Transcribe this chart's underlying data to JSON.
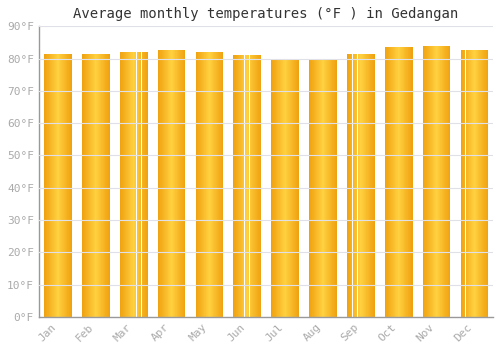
{
  "title": "Average monthly temperatures (°F ) in Gedangan",
  "months": [
    "Jan",
    "Feb",
    "Mar",
    "Apr",
    "May",
    "Jun",
    "Jul",
    "Aug",
    "Sep",
    "Oct",
    "Nov",
    "Dec"
  ],
  "values": [
    81.5,
    81.5,
    82.0,
    82.5,
    82.0,
    81.0,
    80.0,
    80.0,
    81.5,
    83.5,
    84.0,
    82.5
  ],
  "bar_color_center": "#FFCC44",
  "bar_color_edge": "#F0A000",
  "background_color": "#FFFFFF",
  "grid_color": "#E0E0E8",
  "ylabel_ticks": [
    "0°F",
    "10°F",
    "20°F",
    "30°F",
    "40°F",
    "50°F",
    "60°F",
    "70°F",
    "80°F",
    "90°F"
  ],
  "ylim": [
    0,
    90
  ],
  "yticks": [
    0,
    10,
    20,
    30,
    40,
    50,
    60,
    70,
    80,
    90
  ],
  "title_fontsize": 10,
  "tick_fontsize": 8,
  "tick_color": "#AAAAAA",
  "spine_color": "#999999",
  "bar_width": 0.72
}
